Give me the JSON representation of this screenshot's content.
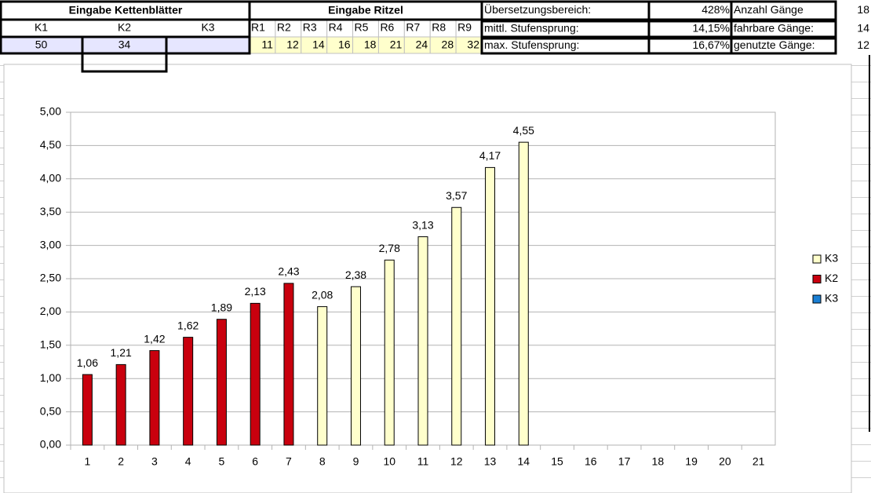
{
  "sheet": {
    "chainring_title": "Eingabe Kettenblätter",
    "sprocket_title": "Eingabe Ritzel",
    "chainring_labels": [
      "K1",
      "K2",
      "K3"
    ],
    "chainrings": [
      50,
      34,
      null
    ],
    "sprocket_labels": [
      "R1",
      "R2",
      "R3",
      "R4",
      "R5",
      "R6",
      "R7",
      "R8",
      "R9"
    ],
    "sprockets": [
      11,
      12,
      14,
      16,
      18,
      21,
      24,
      28,
      32
    ],
    "stats": [
      {
        "label": "Übersetzungsbereich:",
        "value": "428%"
      },
      {
        "label": "mittl. Stufensprung:",
        "value": "14,15%"
      },
      {
        "label": "max. Stufensprung:",
        "value": "16,67%"
      }
    ],
    "gears": [
      {
        "label": "Anzahl Gänge",
        "value": 18
      },
      {
        "label": "fahrbare Gänge:",
        "value": 14
      },
      {
        "label": "genutzte Gänge:",
        "value": 12
      }
    ]
  },
  "chart_data": {
    "type": "bar",
    "categories": [
      "1",
      "2",
      "3",
      "4",
      "5",
      "6",
      "7",
      "8",
      "9",
      "10",
      "11",
      "12",
      "13",
      "14",
      "15",
      "16",
      "17",
      "18",
      "19",
      "20",
      "21"
    ],
    "series": [
      {
        "name": "K3",
        "color": "#ffffcc",
        "values": [
          null,
          null,
          null,
          null,
          null,
          null,
          null,
          2.08,
          2.38,
          2.78,
          3.13,
          3.57,
          4.17,
          4.55,
          null,
          null,
          null,
          null,
          null,
          null,
          null
        ],
        "value_labels": [
          null,
          null,
          null,
          null,
          null,
          null,
          null,
          "2,08",
          "2,38",
          "2,78",
          "3,13",
          "3,57",
          "4,17",
          "4,55",
          null,
          null,
          null,
          null,
          null,
          null,
          null
        ]
      },
      {
        "name": "K2",
        "color": "#c9000e",
        "values": [
          1.06,
          1.21,
          1.42,
          1.62,
          1.89,
          2.13,
          2.43,
          null,
          null,
          null,
          null,
          null,
          null,
          null,
          null,
          null,
          null,
          null,
          null,
          null,
          null
        ],
        "value_labels": [
          "1,06",
          "1,21",
          "1,42",
          "1,62",
          "1,89",
          "2,13",
          "2,43",
          null,
          null,
          null,
          null,
          null,
          null,
          null,
          null,
          null,
          null,
          null,
          null,
          null,
          null
        ]
      },
      {
        "name": "K3",
        "color": "#1a7fd4",
        "values": [
          null,
          null,
          null,
          null,
          null,
          null,
          null,
          null,
          null,
          null,
          null,
          null,
          null,
          null,
          null,
          null,
          null,
          null,
          null,
          null,
          null
        ]
      }
    ],
    "ylim": [
      0,
      5
    ],
    "yticks": [
      {
        "value": 0,
        "label": "0,00"
      },
      {
        "value": 0.5,
        "label": "0,50"
      },
      {
        "value": 1,
        "label": "1,00"
      },
      {
        "value": 1.5,
        "label": "1,50"
      },
      {
        "value": 2,
        "label": "2,00"
      },
      {
        "value": 2.5,
        "label": "2,50"
      },
      {
        "value": 3,
        "label": "3,00"
      },
      {
        "value": 3.5,
        "label": "3,50"
      },
      {
        "value": 4,
        "label": "4,00"
      },
      {
        "value": 4.5,
        "label": "4,50"
      },
      {
        "value": 5,
        "label": "5,00"
      }
    ],
    "grid": true,
    "legend": "right"
  }
}
